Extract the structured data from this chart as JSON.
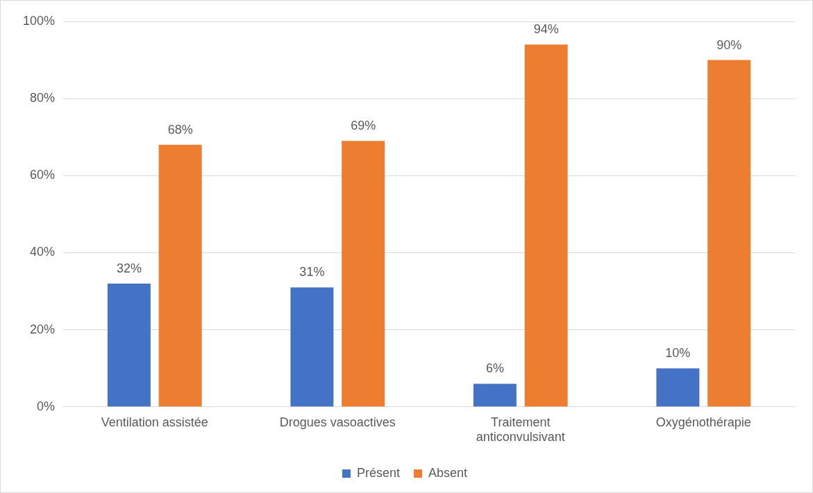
{
  "chart_data": {
    "type": "bar",
    "categories": [
      "Ventilation assistée",
      "Drogues vasoactives",
      "Traitement anticonvulsivant",
      "Oxygénothérapie"
    ],
    "series": [
      {
        "name": "Présent",
        "color": "#4472c4",
        "values": [
          32,
          31,
          6,
          10
        ],
        "value_labels": [
          "32%",
          "31%",
          "6%",
          "10%"
        ]
      },
      {
        "name": "Absent",
        "color": "#ed7d31",
        "values": [
          68,
          69,
          94,
          90
        ],
        "value_labels": [
          "68%",
          "69%",
          "94%",
          "90%"
        ]
      }
    ],
    "ylim": [
      0,
      100
    ],
    "yticks": [
      {
        "value": 0,
        "label": "0%"
      },
      {
        "value": 20,
        "label": "20%"
      },
      {
        "value": 40,
        "label": "40%"
      },
      {
        "value": 60,
        "label": "60%"
      },
      {
        "value": 80,
        "label": "80%"
      },
      {
        "value": 100,
        "label": "100%"
      }
    ],
    "grid": "y",
    "legend": "bottom"
  }
}
